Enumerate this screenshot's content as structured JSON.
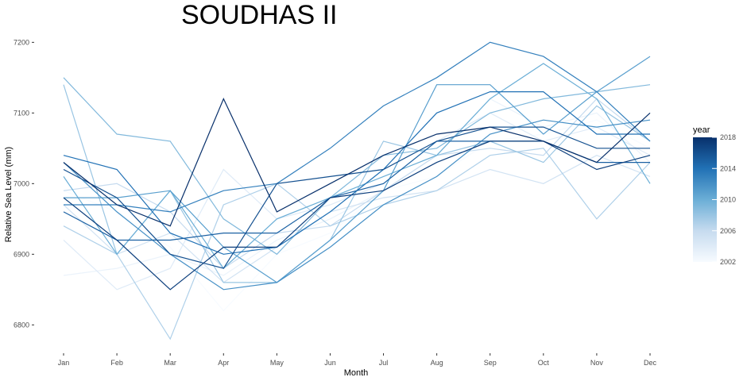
{
  "chart_data": {
    "type": "line",
    "title": "SOUDHAS II",
    "xlabel": "Month",
    "ylabel": "Relative Sea Level (mm)",
    "categories": [
      "Jan",
      "Feb",
      "Mar",
      "Apr",
      "May",
      "Jun",
      "Jul",
      "Aug",
      "Sep",
      "Oct",
      "Nov",
      "Dec"
    ],
    "yticks": [
      6800,
      6900,
      7000,
      7100,
      7200
    ],
    "ylim": [
      6770,
      7215
    ],
    "grid": false,
    "legend": {
      "title": "year",
      "placement": "right",
      "labels": [
        "2018",
        "2014",
        "2010",
        "2006",
        "2002"
      ],
      "range": [
        2002,
        2018
      ],
      "color_low": "#f7fbff",
      "color_high": "#08306b"
    },
    "series": [
      {
        "year": 2002,
        "values": [
          6990,
          6960,
          6910,
          6820,
          6900,
          6930,
          6990,
          7010,
          7060,
          7070,
          7090,
          7050
        ]
      },
      {
        "year": 2003,
        "values": [
          6870,
          6880,
          6900,
          6870,
          6920,
          6950,
          6990,
          7040,
          7120,
          7080,
          7100,
          7030
        ]
      },
      {
        "year": 2004,
        "values": [
          6920,
          6850,
          6880,
          7020,
          6950,
          6970,
          7000,
          7060,
          7100,
          7060,
          7080,
          7040
        ]
      },
      {
        "year": 2005,
        "values": [
          6970,
          6900,
          6930,
          6860,
          6910,
          6960,
          6980,
          6990,
          7020,
          7000,
          7040,
          7010
        ]
      },
      {
        "year": 2006,
        "values": [
          6990,
          7000,
          6960,
          6880,
          6930,
          6940,
          6990,
          7040,
          7050,
          7040,
          7120,
          7060
        ]
      },
      {
        "year": 2007,
        "values": [
          6940,
          6900,
          6780,
          6970,
          7000,
          6940,
          6970,
          6990,
          7040,
          7050,
          6950,
          7030
        ]
      },
      {
        "year": 2008,
        "values": [
          7140,
          6900,
          6990,
          6860,
          6860,
          6920,
          7060,
          7040,
          7060,
          7030,
          7110,
          7060
        ]
      },
      {
        "year": 2009,
        "values": [
          7150,
          7070,
          7060,
          6950,
          6900,
          6980,
          7040,
          7050,
          7100,
          7120,
          7130,
          7140
        ]
      },
      {
        "year": 2010,
        "values": [
          7010,
          6900,
          6990,
          6880,
          6950,
          6980,
          7010,
          7040,
          7120,
          7170,
          7120,
          7000
        ]
      },
      {
        "year": 2011,
        "values": [
          6980,
          6980,
          6990,
          6910,
          6860,
          6920,
          6990,
          7140,
          7140,
          7070,
          7130,
          7180
        ]
      },
      {
        "year": 2012,
        "values": [
          7030,
          6960,
          6900,
          6850,
          6860,
          6910,
          6970,
          7010,
          7070,
          7090,
          7080,
          7090
        ]
      },
      {
        "year": 2013,
        "values": [
          6970,
          6970,
          6960,
          6990,
          7000,
          7050,
          7110,
          7150,
          7200,
          7180,
          7130,
          7060
        ]
      },
      {
        "year": 2014,
        "values": [
          7040,
          7020,
          6930,
          6900,
          6910,
          6960,
          7020,
          7100,
          7130,
          7130,
          7070,
          7070
        ]
      },
      {
        "year": 2015,
        "values": [
          6960,
          6920,
          6920,
          6930,
          6930,
          6980,
          7000,
          7060,
          7060,
          7060,
          7030,
          7030
        ]
      },
      {
        "year": 2016,
        "values": [
          7020,
          6980,
          6900,
          6880,
          7000,
          7010,
          7020,
          7060,
          7080,
          7080,
          7050,
          7050
        ]
      },
      {
        "year": 2017,
        "values": [
          6980,
          6920,
          6850,
          6910,
          6910,
          6980,
          6990,
          7030,
          7060,
          7060,
          7020,
          7040
        ]
      },
      {
        "year": 2018,
        "values": [
          7030,
          6970,
          6940,
          7120,
          6960,
          7000,
          7040,
          7070,
          7080,
          7060,
          7030,
          7100
        ]
      }
    ]
  }
}
